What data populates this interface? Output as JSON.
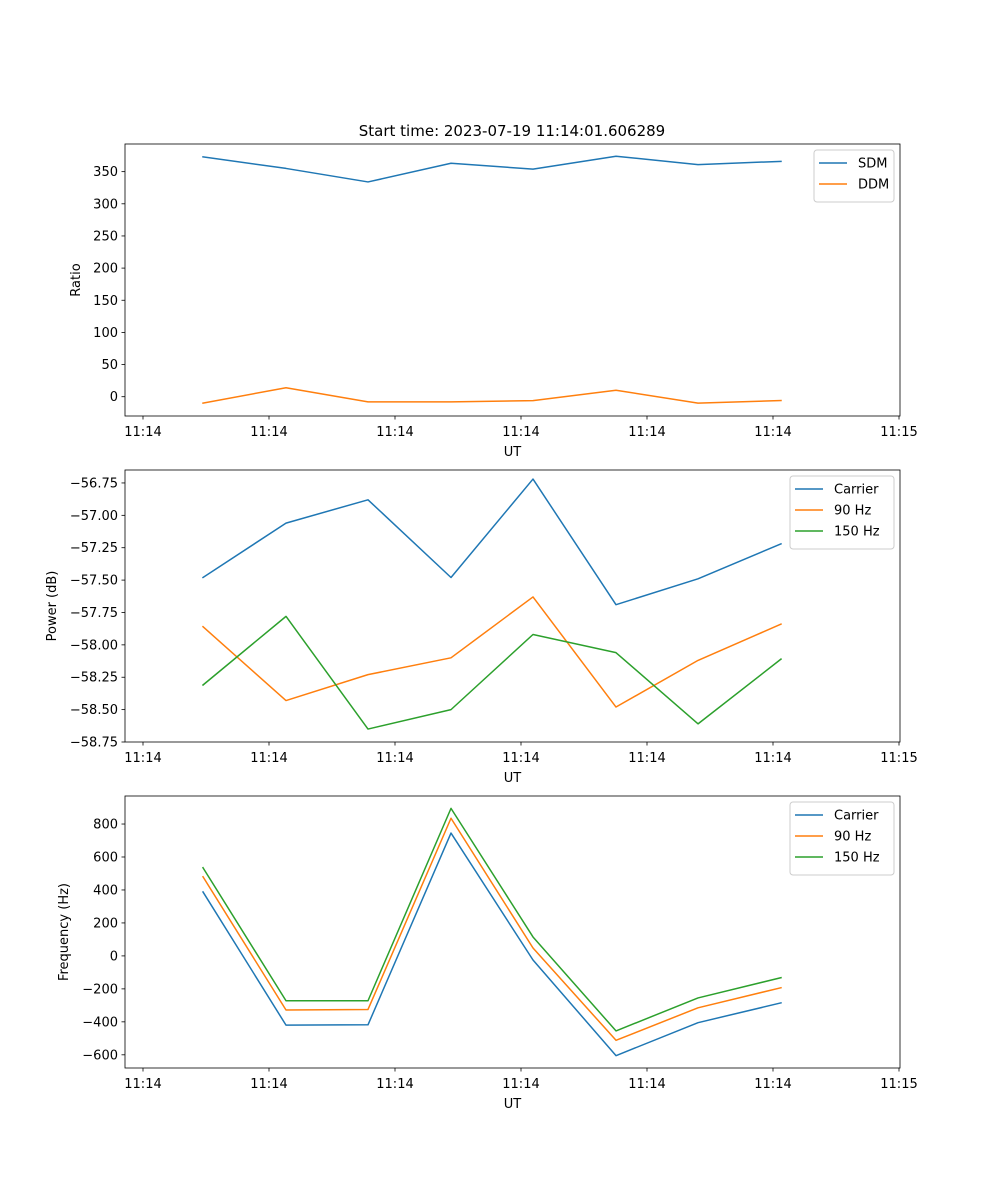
{
  "title": "Start time: 2023-07-19 11:14:01.606289",
  "chart_data": [
    {
      "type": "line",
      "xlabel": "UT",
      "ylabel": "Ratio",
      "x_tick_labels": [
        "11:14",
        "11:14",
        "11:14",
        "11:14",
        "11:14",
        "11:14",
        "11:15"
      ],
      "ylim": [
        -30,
        393
      ],
      "yticks": [
        0,
        50,
        100,
        150,
        200,
        250,
        300,
        350
      ],
      "ytick_labels": [
        "0",
        "50",
        "100",
        "150",
        "200",
        "250",
        "300",
        "350"
      ],
      "legend_position": "top-right",
      "series": [
        {
          "name": "SDM",
          "color": "#1f77b4",
          "values": [
            373,
            355,
            334,
            363,
            354,
            374,
            361,
            366
          ]
        },
        {
          "name": "DDM",
          "color": "#ff7f0e",
          "values": [
            -10,
            14,
            -8,
            -8,
            -6,
            10,
            -10,
            -6
          ]
        }
      ]
    },
    {
      "type": "line",
      "xlabel": "UT",
      "ylabel": "Power (dB)",
      "x_tick_labels": [
        "11:14",
        "11:14",
        "11:14",
        "11:14",
        "11:14",
        "11:14",
        "11:15"
      ],
      "ylim": [
        -58.75,
        -56.65
      ],
      "yticks": [
        -58.75,
        -58.5,
        -58.25,
        -58.0,
        -57.75,
        -57.5,
        -57.25,
        -57.0,
        -56.75
      ],
      "ytick_labels": [
        "−58.75",
        "−58.50",
        "−58.25",
        "−58.00",
        "−57.75",
        "−57.50",
        "−57.25",
        "−57.00",
        "−56.75"
      ],
      "legend_position": "top-right",
      "series": [
        {
          "name": "Carrier",
          "color": "#1f77b4",
          "values": [
            -57.48,
            -57.06,
            -56.88,
            -57.48,
            -56.72,
            -57.69,
            -57.49,
            -57.22
          ]
        },
        {
          "name": "90 Hz",
          "color": "#ff7f0e",
          "values": [
            -57.86,
            -58.43,
            -58.23,
            -58.1,
            -57.63,
            -58.48,
            -58.12,
            -57.84
          ]
        },
        {
          "name": "150 Hz",
          "color": "#2ca02c",
          "values": [
            -58.31,
            -57.78,
            -58.65,
            -58.5,
            -57.92,
            -58.06,
            -58.61,
            -58.11
          ]
        }
      ]
    },
    {
      "type": "line",
      "xlabel": "UT",
      "ylabel": "Frequency (Hz)",
      "x_tick_labels": [
        "11:14",
        "11:14",
        "11:14",
        "11:14",
        "11:14",
        "11:14",
        "11:15"
      ],
      "ylim": [
        -680,
        970
      ],
      "yticks": [
        -600,
        -400,
        -200,
        0,
        200,
        400,
        600,
        800
      ],
      "ytick_labels": [
        "−600",
        "−400",
        "−200",
        "0",
        "200",
        "400",
        "600",
        "800"
      ],
      "legend_position": "top-right",
      "series": [
        {
          "name": "Carrier",
          "color": "#1f77b4",
          "values": [
            388,
            -420,
            -418,
            745,
            -25,
            -605,
            -405,
            -285
          ]
        },
        {
          "name": "90 Hz",
          "color": "#ff7f0e",
          "values": [
            480,
            -328,
            -325,
            835,
            48,
            -512,
            -315,
            -193
          ]
        },
        {
          "name": "150 Hz",
          "color": "#2ca02c",
          "values": [
            535,
            -272,
            -272,
            895,
            115,
            -455,
            -255,
            -132
          ]
        }
      ]
    }
  ]
}
